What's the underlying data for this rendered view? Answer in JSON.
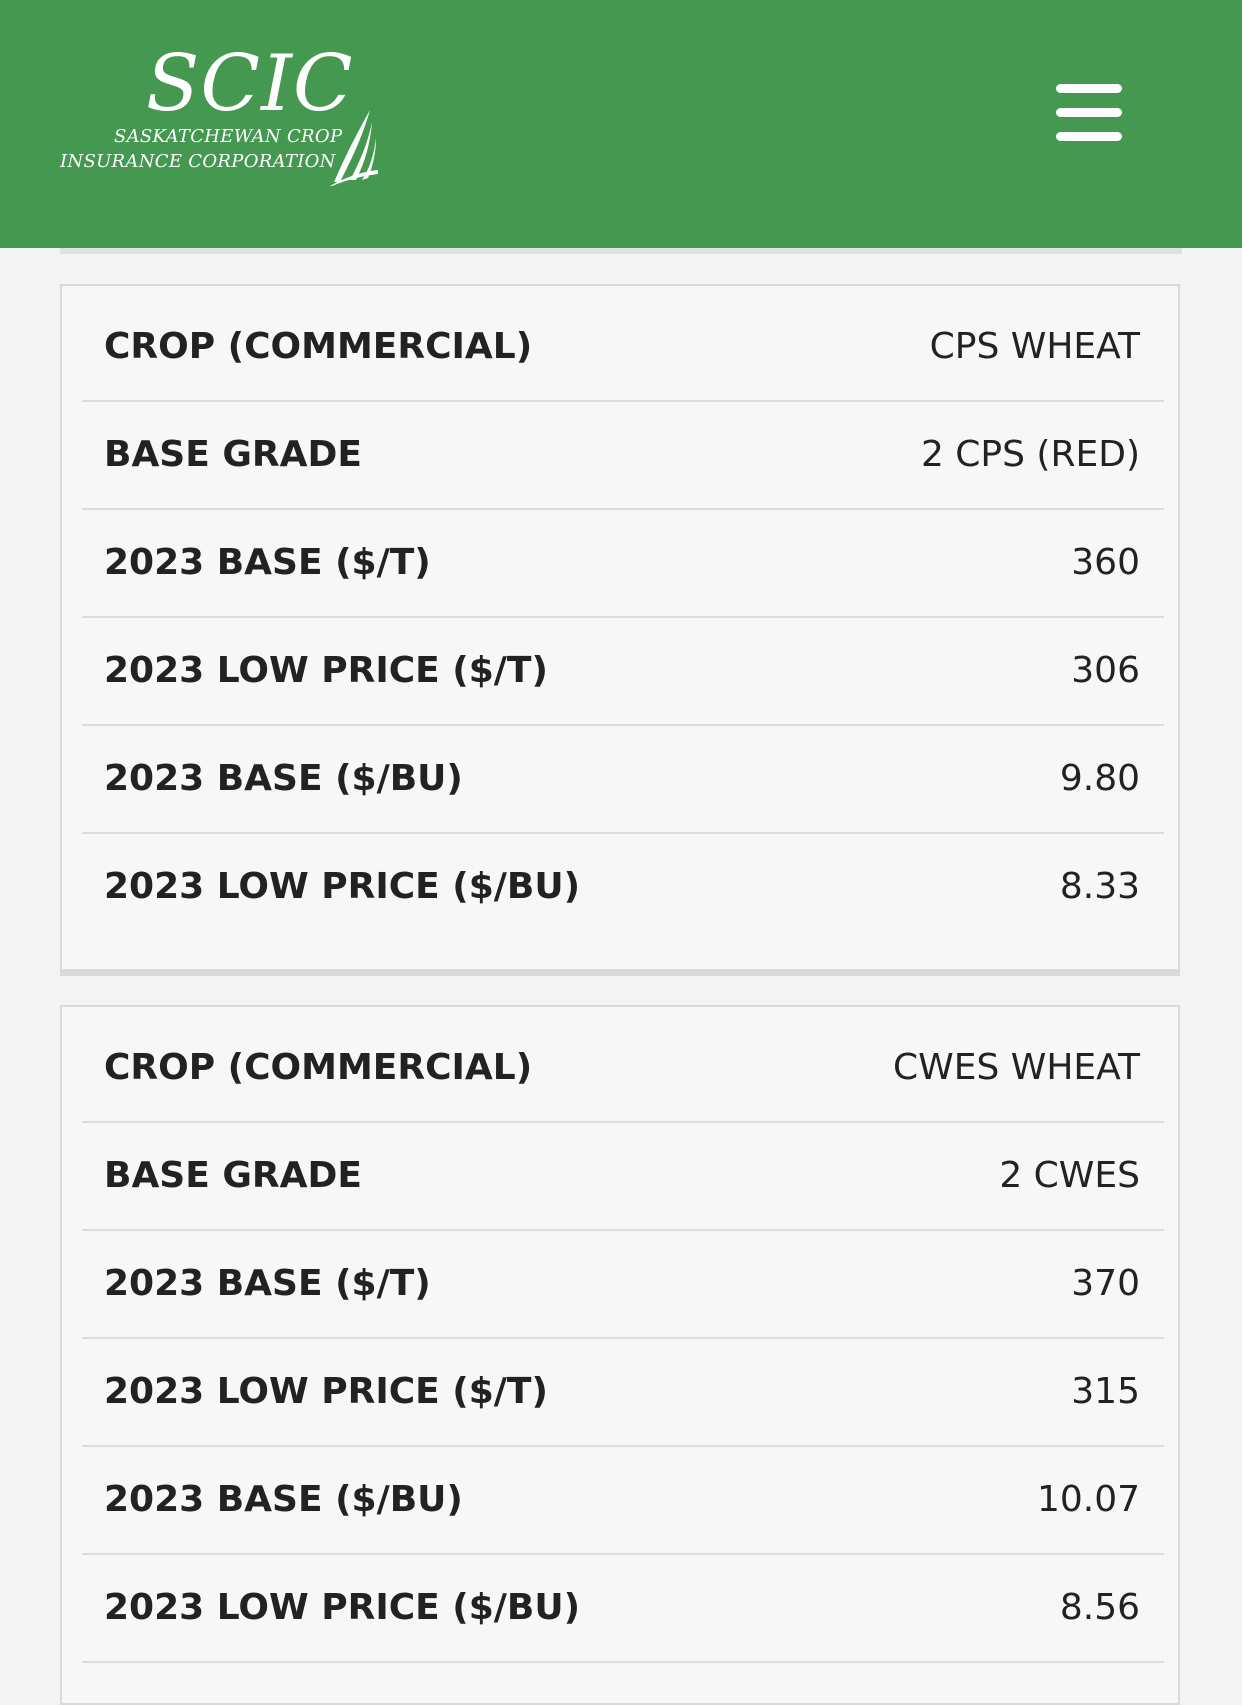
{
  "header": {
    "logo": {
      "wordmark": "SCIC",
      "line1": "SASKATCHEWAN CROP",
      "line2": "INSURANCE CORPORATION"
    },
    "menu_icon": "hamburger-menu-icon",
    "background_color": "#449850"
  },
  "cards": [
    {
      "rows": [
        {
          "label": "CROP (COMMERCIAL)",
          "value": "CPS WHEAT"
        },
        {
          "label": "BASE GRADE",
          "value": "2 CPS (RED)"
        },
        {
          "label": "2023 BASE ($/T)",
          "value": "360"
        },
        {
          "label": "2023 LOW PRICE ($/T)",
          "value": "306"
        },
        {
          "label": "2023 BASE ($/BU)",
          "value": "9.80"
        },
        {
          "label": "2023 LOW PRICE ($/BU)",
          "value": "8.33"
        }
      ]
    },
    {
      "rows": [
        {
          "label": "CROP (COMMERCIAL)",
          "value": "CWES WHEAT"
        },
        {
          "label": "BASE GRADE",
          "value": "2 CWES"
        },
        {
          "label": "2023 BASE ($/T)",
          "value": "370"
        },
        {
          "label": "2023 LOW PRICE ($/T)",
          "value": "315"
        },
        {
          "label": "2023 BASE ($/BU)",
          "value": "10.07"
        },
        {
          "label": "2023 LOW PRICE ($/BU)",
          "value": "8.56"
        }
      ]
    }
  ]
}
